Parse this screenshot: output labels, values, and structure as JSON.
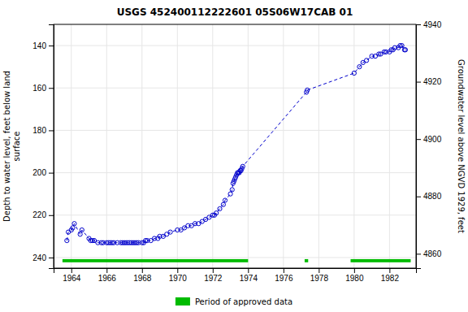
{
  "chart_data": {
    "type": "line",
    "title": "USGS 452400112222601 05S06W17CAB 01",
    "ylabel": "Depth to water level, feet below land\nsurface",
    "y2label": "Groundwater level above NGVD 1929, feet",
    "xlim": [
      1963.0,
      1983.5
    ],
    "xticks": [
      1964,
      1966,
      1968,
      1970,
      1972,
      1974,
      1976,
      1978,
      1980,
      1982
    ],
    "ylim": [
      245,
      130
    ],
    "yticks": [
      140,
      160,
      180,
      200,
      220,
      240
    ],
    "y2lim": [
      4855,
      4940
    ],
    "y2ticks": [
      4940,
      4920,
      4900,
      4880,
      4860
    ],
    "grid": true,
    "series": [
      {
        "type": "line",
        "color": "#0000cc",
        "line_style": "dashed",
        "marker": "open-circle",
        "x": [
          1963.75,
          1963.83,
          1964.0,
          1964.08,
          1964.17,
          1964.5,
          1964.6,
          1965.0,
          1965.1,
          1965.2,
          1965.3,
          1965.5,
          1965.7,
          1965.8,
          1966.0,
          1966.1,
          1966.2,
          1966.3,
          1966.4,
          1966.6,
          1966.8,
          1966.9,
          1967.0,
          1967.1,
          1967.2,
          1967.3,
          1967.4,
          1967.5,
          1967.6,
          1967.7,
          1967.8,
          1968.0,
          1968.1,
          1968.2,
          1968.3,
          1968.5,
          1968.7,
          1968.9,
          1969.0,
          1969.2,
          1969.4,
          1969.6,
          1970.0,
          1970.2,
          1970.4,
          1970.6,
          1970.8,
          1971.0,
          1971.2,
          1971.4,
          1971.6,
          1971.8,
          1972.0,
          1972.1,
          1972.2,
          1972.4,
          1972.6,
          1972.7,
          1973.0,
          1973.1,
          1973.15,
          1973.2,
          1973.25,
          1973.3,
          1973.35,
          1973.4,
          1973.45,
          1973.5,
          1973.55,
          1973.6,
          1973.65,
          1973.7,
          1977.3,
          1977.35,
          1980.0,
          1980.3,
          1980.5,
          1980.7,
          1981.0,
          1981.2,
          1981.4,
          1981.5,
          1981.7,
          1981.8,
          1982.0,
          1982.1,
          1982.2,
          1982.3,
          1982.5,
          1982.6,
          1982.7,
          1982.85,
          1982.9
        ],
        "values": [
          232,
          228,
          227,
          226,
          224,
          229,
          227,
          231,
          232,
          232,
          232,
          233,
          233,
          233,
          233,
          233,
          233,
          233,
          233,
          233,
          233,
          233,
          233,
          233,
          233,
          233,
          233,
          233,
          233,
          233,
          233,
          233,
          233,
          232,
          232,
          232,
          231,
          231,
          230,
          230,
          229,
          228,
          227,
          227,
          226,
          225,
          225,
          224,
          224,
          223,
          222,
          221,
          220,
          220,
          219,
          217,
          215,
          213,
          210,
          208,
          205,
          204,
          203,
          202,
          201,
          200,
          200,
          200,
          199,
          199,
          198,
          197,
          162,
          161,
          153,
          150,
          148,
          147,
          145,
          145,
          144,
          144,
          143,
          143,
          143,
          142,
          142,
          141,
          141,
          140,
          140,
          142,
          142
        ]
      },
      {
        "type": "bar",
        "orientation": "horizontal",
        "name": "Period of approved data",
        "color": "#00bb00",
        "periods": [
          [
            1963.5,
            1974.0
          ],
          [
            1977.2,
            1977.4
          ],
          [
            1979.8,
            1983.2
          ]
        ],
        "y": 241.5,
        "height": 1.5
      }
    ]
  }
}
